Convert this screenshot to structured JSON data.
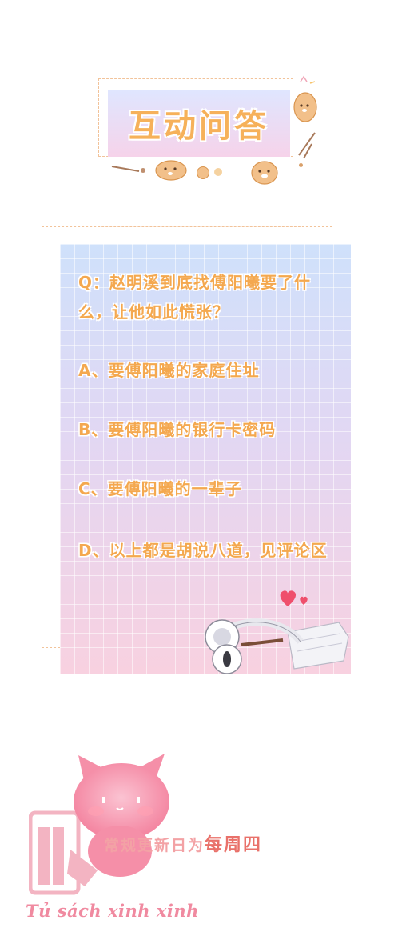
{
  "banner": {
    "title": "互动问答"
  },
  "question": {
    "text": "Q：赵明溪到底找傅阳曦要了什么，让他如此慌张？",
    "options": [
      "A、要傅阳曦的家庭住址",
      "B、要傅阳曦的银行卡密码",
      "C、要傅阳曦的一辈子",
      "D、以上都是胡说八道，见评论区"
    ]
  },
  "footer": {
    "schedule_prefix": "常规更新日为",
    "schedule_day": "每周四",
    "watermark": "Tủ sách xinh xinh"
  },
  "colors": {
    "accent_text": "#f4a84f",
    "dashed_border": "#f2c39a",
    "footer_pink": "#f3a2a5",
    "footer_emphasis": "#e9716a",
    "cat_pink": "#f58fa8"
  },
  "icons": [
    "heart-icon",
    "headphones-icon",
    "face-mask-icon",
    "bear-bread-icon",
    "pink-cat-mascot-icon",
    "book-icon"
  ]
}
